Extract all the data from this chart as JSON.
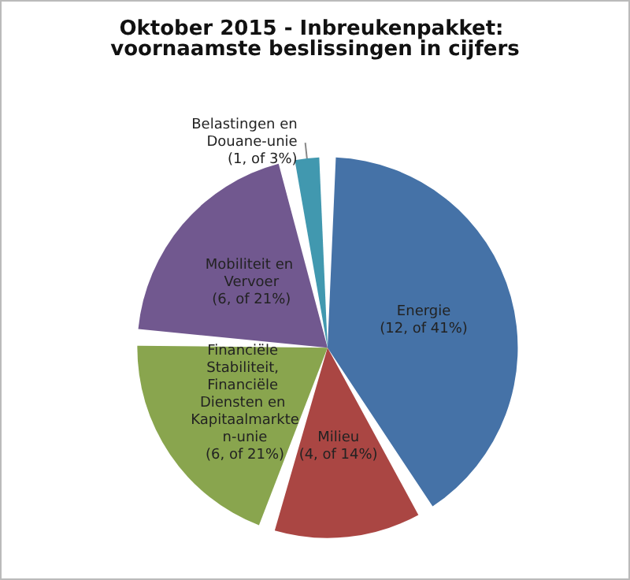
{
  "chart_data": {
    "type": "pie",
    "title": "Oktober 2015 - Inbreukenpakket: voornaamste beslissingen in cijfers",
    "categories": [
      "Energie",
      "Milieu",
      "Financiële Stabiliteit, Financiële Diensten en Kapitaalmarkten-unie",
      "Mobiliteit en Vervoer",
      "Belastingen en Douane-unie"
    ],
    "values": [
      12,
      4,
      6,
      6,
      1
    ],
    "value_labels": [
      "(12, of 41%)",
      "(4, of 14%)",
      "(6, of 21%)",
      "(6, of 21%)",
      "(1, of 3%)"
    ],
    "colors": [
      "#4572a7",
      "#aa4643",
      "#89a54e",
      "#71588f",
      "#4198af"
    ],
    "legend": false
  }
}
